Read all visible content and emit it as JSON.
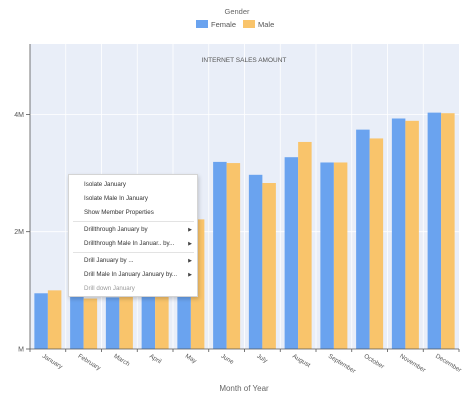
{
  "chart_data": {
    "type": "bar",
    "title": "INTERNET SALES AMOUNT",
    "legend_title": "Gender",
    "legend_position": "top-center",
    "xlabel": "Month of Year",
    "ylabel": "",
    "ylim": [
      0,
      5200000
    ],
    "yticks": [
      {
        "value": 0,
        "label": "M"
      },
      {
        "value": 2000000,
        "label": "2M"
      },
      {
        "value": 4000000,
        "label": "4M"
      }
    ],
    "grid": true,
    "categories": [
      "January",
      "February",
      "March",
      "April",
      "May",
      "June",
      "July",
      "August",
      "September",
      "October",
      "November",
      "December"
    ],
    "series": [
      {
        "name": "Female",
        "color": "#6aa3ef",
        "values": [
          950000,
          900000,
          880000,
          920000,
          1250000,
          3190000,
          2970000,
          3270000,
          3180000,
          3740000,
          3930000,
          4030000
        ]
      },
      {
        "name": "Male",
        "color": "#f9c46b",
        "values": [
          1000000,
          860000,
          940000,
          960000,
          2210000,
          3170000,
          2830000,
          3530000,
          3180000,
          3590000,
          3890000,
          4020000
        ]
      }
    ]
  },
  "context_menu": {
    "items": [
      {
        "label": "Isolate January",
        "has_submenu": false,
        "disabled": false
      },
      {
        "label": "Isolate Male In January",
        "has_submenu": false,
        "disabled": false
      },
      {
        "label": "Show Member Properties",
        "has_submenu": false,
        "disabled": false
      },
      {
        "label": "Drillthrough January by",
        "has_submenu": true,
        "disabled": false
      },
      {
        "label": "Drillthrough Male In Januar.. by...",
        "has_submenu": true,
        "disabled": false
      },
      {
        "label": "Drill January by ...",
        "has_submenu": true,
        "disabled": false
      },
      {
        "label": "Drill Male In January January by...",
        "has_submenu": true,
        "disabled": false
      },
      {
        "label": "Drill down January",
        "has_submenu": false,
        "disabled": true
      }
    ],
    "separators_after": [
      2,
      4
    ]
  },
  "colors": {
    "plot_background": "#e9eef8",
    "gridline": "#ffffff",
    "axis": "#555555",
    "text": "#555555"
  }
}
